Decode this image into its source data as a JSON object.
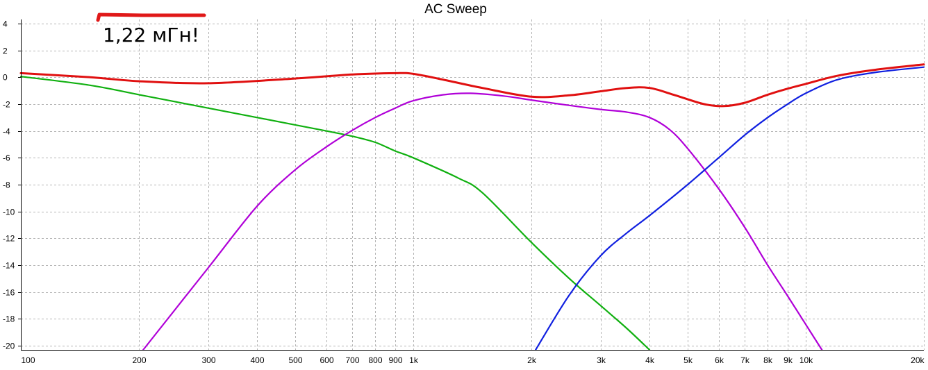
{
  "chart_data": {
    "type": "line",
    "title": "AC Sweep",
    "xlabel": "",
    "ylabel": "",
    "x_scale": "log",
    "xlim": [
      100,
      20000
    ],
    "ylim": [
      -20.3,
      4.3
    ],
    "grid": true,
    "x_ticks": [
      100,
      200,
      300,
      400,
      500,
      600,
      700,
      800,
      900,
      1000,
      2000,
      3000,
      4000,
      5000,
      6000,
      7000,
      8000,
      9000,
      10000,
      20000
    ],
    "x_tick_labels": [
      "100",
      "200",
      "300",
      "400",
      "500",
      "600",
      "700",
      "800",
      "900",
      "1k",
      "2k",
      "3k",
      "4k",
      "5k",
      "6k",
      "7k",
      "8k",
      "9k",
      "10k",
      "20k"
    ],
    "y_ticks": [
      4,
      2,
      0,
      -2,
      -4,
      -6,
      -8,
      -10,
      -12,
      -14,
      -16,
      -18,
      -20
    ],
    "y_tick_labels": [
      "4",
      "2",
      "0",
      "-2",
      "-4",
      "-6",
      "-8",
      "-10",
      "-12",
      "-14",
      "-16",
      "-18",
      "-20"
    ],
    "annotation": "1,22 мГн!",
    "series": [
      {
        "color": "#e01010",
        "points": [
          [
            100,
            0.3
          ],
          [
            150,
            0.0
          ],
          [
            200,
            -0.3
          ],
          [
            300,
            -0.45
          ],
          [
            500,
            -0.1
          ],
          [
            700,
            0.2
          ],
          [
            900,
            0.3
          ],
          [
            1000,
            0.25
          ],
          [
            1200,
            -0.2
          ],
          [
            1500,
            -0.8
          ],
          [
            2000,
            -1.45
          ],
          [
            2500,
            -1.35
          ],
          [
            3000,
            -1.05
          ],
          [
            3500,
            -0.8
          ],
          [
            4000,
            -0.8
          ],
          [
            4600,
            -1.3
          ],
          [
            5500,
            -2.0
          ],
          [
            6200,
            -2.15
          ],
          [
            7000,
            -1.9
          ],
          [
            8000,
            -1.3
          ],
          [
            9000,
            -0.85
          ],
          [
            10000,
            -0.5
          ],
          [
            12000,
            0.1
          ],
          [
            15000,
            0.55
          ],
          [
            20000,
            0.95
          ]
        ]
      },
      {
        "color": "#10b010",
        "points": [
          [
            100,
            0.05
          ],
          [
            150,
            -0.6
          ],
          [
            200,
            -1.3
          ],
          [
            300,
            -2.3
          ],
          [
            400,
            -3.0
          ],
          [
            500,
            -3.55
          ],
          [
            600,
            -4.0
          ],
          [
            700,
            -4.4
          ],
          [
            800,
            -4.85
          ],
          [
            900,
            -5.5
          ],
          [
            1000,
            -6.0
          ],
          [
            1300,
            -7.5
          ],
          [
            1500,
            -8.6
          ],
          [
            2000,
            -12.3
          ],
          [
            2500,
            -15.0
          ],
          [
            3000,
            -17.0
          ],
          [
            3500,
            -18.7
          ],
          [
            4000,
            -20.3
          ]
        ]
      },
      {
        "color": "#b000d8",
        "points": [
          [
            205,
            -20.3
          ],
          [
            300,
            -14.2
          ],
          [
            400,
            -9.6
          ],
          [
            500,
            -6.9
          ],
          [
            600,
            -5.2
          ],
          [
            700,
            -3.95
          ],
          [
            800,
            -3.0
          ],
          [
            900,
            -2.3
          ],
          [
            1000,
            -1.75
          ],
          [
            1200,
            -1.3
          ],
          [
            1400,
            -1.2
          ],
          [
            1700,
            -1.4
          ],
          [
            2000,
            -1.7
          ],
          [
            2500,
            -2.1
          ],
          [
            3000,
            -2.4
          ],
          [
            3500,
            -2.6
          ],
          [
            4000,
            -3.0
          ],
          [
            4500,
            -3.9
          ],
          [
            5000,
            -5.3
          ],
          [
            6000,
            -8.3
          ],
          [
            7000,
            -11.2
          ],
          [
            8000,
            -14.0
          ],
          [
            9000,
            -16.3
          ],
          [
            10000,
            -18.4
          ],
          [
            11000,
            -20.3
          ]
        ]
      },
      {
        "color": "#1020e0",
        "points": [
          [
            2050,
            -20.3
          ],
          [
            2500,
            -16.2
          ],
          [
            3000,
            -13.3
          ],
          [
            3500,
            -11.6
          ],
          [
            4000,
            -10.3
          ],
          [
            5000,
            -8.0
          ],
          [
            6000,
            -6.0
          ],
          [
            7000,
            -4.3
          ],
          [
            8000,
            -3.0
          ],
          [
            9000,
            -2.0
          ],
          [
            10000,
            -1.2
          ],
          [
            12000,
            -0.2
          ],
          [
            15000,
            0.35
          ],
          [
            20000,
            0.75
          ]
        ]
      }
    ]
  }
}
